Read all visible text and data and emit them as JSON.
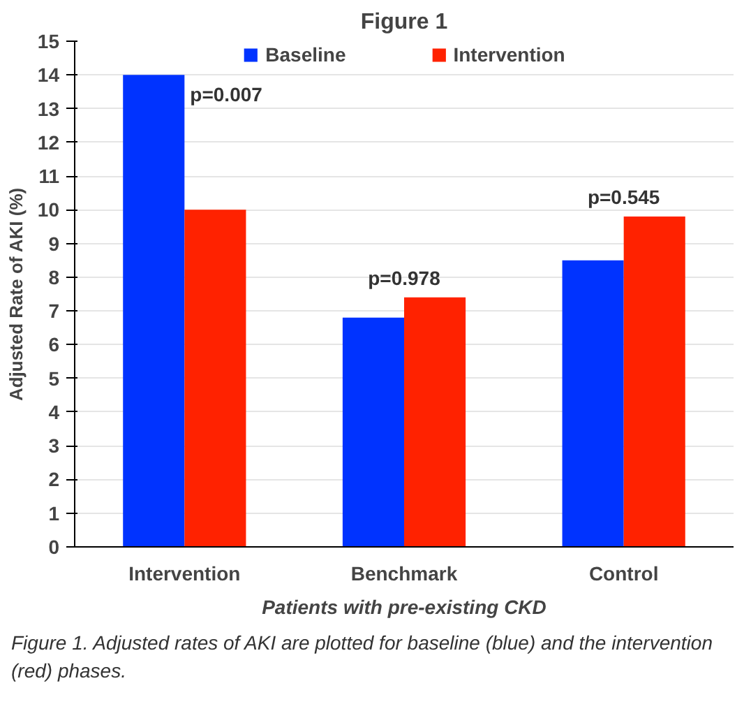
{
  "chart_data": {
    "type": "bar",
    "title": "Figure 1",
    "xlabel": "Patients with pre-existing CKD",
    "ylabel": "Adjusted Rate of AKI (%)",
    "categories": [
      "Intervention",
      "Benchmark",
      "Control"
    ],
    "series": [
      {
        "name": "Baseline",
        "color": "#0033ff",
        "values": [
          14.0,
          6.8,
          8.5
        ]
      },
      {
        "name": "Intervention",
        "color": "#ff2200",
        "values": [
          10.0,
          7.4,
          9.8
        ]
      }
    ],
    "ylim": [
      0,
      15
    ],
    "yticks": [
      0,
      1,
      2,
      3,
      4,
      5,
      6,
      7,
      8,
      9,
      10,
      11,
      12,
      13,
      14,
      15
    ],
    "grid": "y",
    "legend": "top",
    "annotations": [
      "p=0.007",
      "p=0.978",
      "p=0.545",
      "Figure 1. Adjusted rates of AKI are plotted for baseline (blue) and the intervention (red) phases."
    ]
  }
}
